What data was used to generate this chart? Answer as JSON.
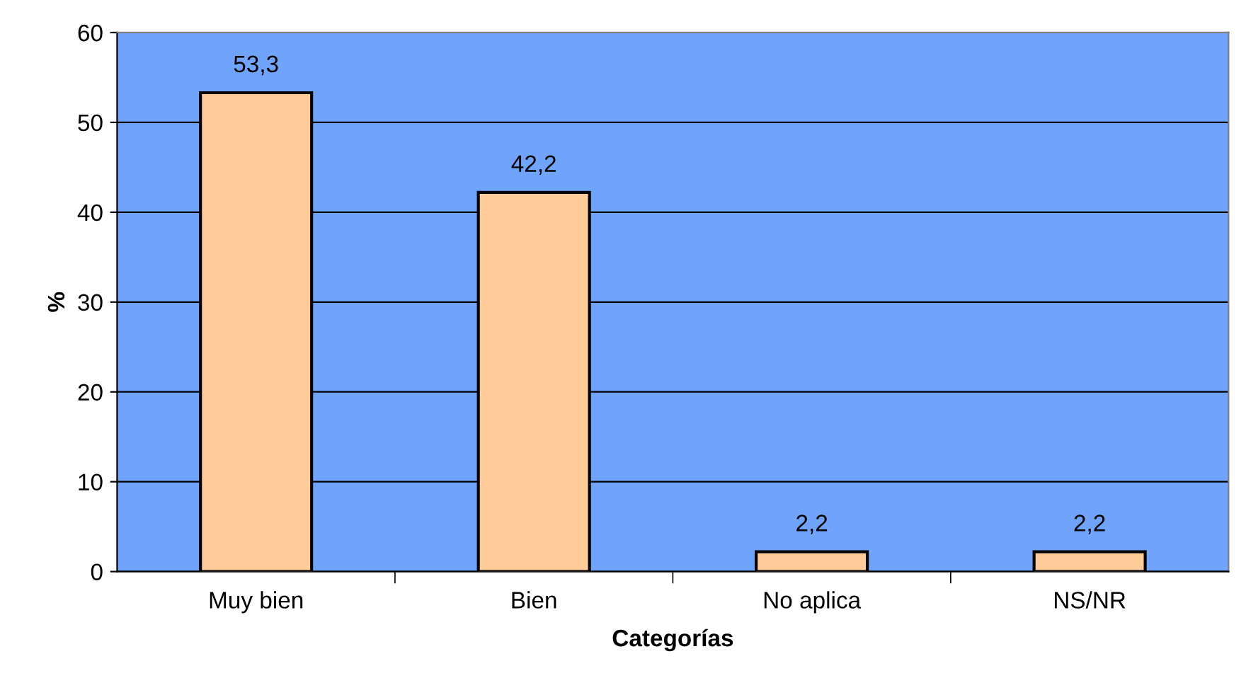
{
  "chart_data": {
    "type": "bar",
    "xlabel": "Categorías",
    "ylabel": "%",
    "categories": [
      "Muy bien",
      "Bien",
      "No aplica",
      "NS/NR"
    ],
    "values": [
      53.3,
      42.2,
      2.2,
      2.2
    ],
    "value_labels": [
      "53,3",
      "42,2",
      "2,2",
      "2,2"
    ],
    "color": "#ffcc99",
    "ylim": [
      0,
      60
    ],
    "yticks": [
      0,
      10,
      20,
      30,
      40,
      50,
      60
    ],
    "grid": "y",
    "legend": false
  }
}
